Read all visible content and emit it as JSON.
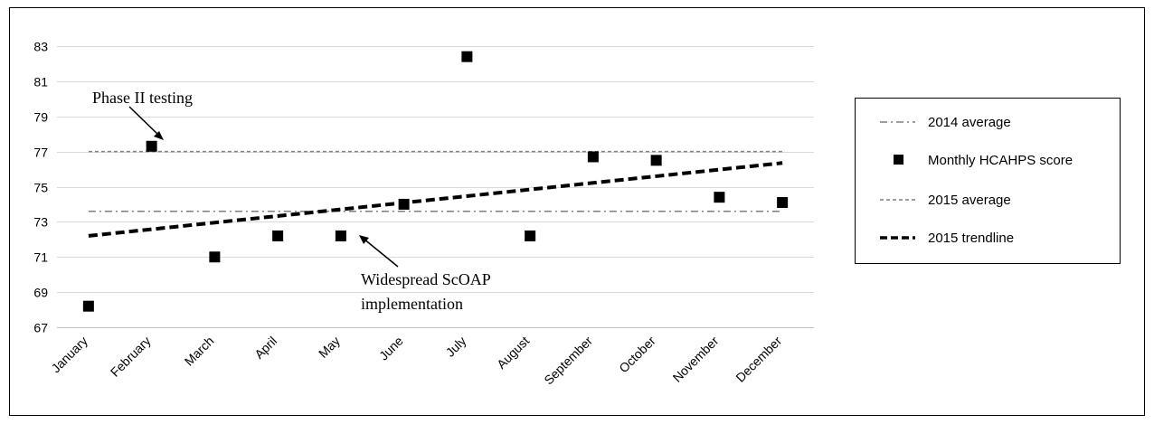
{
  "chart_data": {
    "type": "scatter",
    "categories": [
      "January",
      "February",
      "March",
      "April",
      "May",
      "June",
      "July",
      "August",
      "September",
      "October",
      "November",
      "December"
    ],
    "ylim": [
      67,
      83
    ],
    "yticks": [
      67,
      69,
      71,
      73,
      75,
      77,
      79,
      81,
      83
    ],
    "grid": true,
    "legend_position": "right",
    "series": [
      {
        "name": "2014 average",
        "kind": "reference-line",
        "style": "dash-dot",
        "color": "#7f7f7f",
        "value": 73.6
      },
      {
        "name": "Monthly HCAHPS score",
        "kind": "points",
        "marker": "square",
        "color": "#000000",
        "values": [
          68.2,
          77.3,
          71.0,
          72.2,
          72.2,
          74.0,
          82.4,
          72.2,
          76.7,
          76.5,
          74.4,
          74.1
        ]
      },
      {
        "name": "2015 average",
        "kind": "reference-line",
        "style": "dashed",
        "color": "#7f7f7f",
        "value": 77.0
      },
      {
        "name": "2015 trendline",
        "kind": "trendline",
        "style": "bold-dashed",
        "color": "#000000",
        "start": 72.2,
        "end": 76.35
      }
    ],
    "annotations": [
      {
        "text": "Phase II testing",
        "points_to": "February"
      },
      {
        "lines": [
          "Widespread ScOAP",
          "implementation"
        ],
        "points_to": "May"
      }
    ]
  }
}
